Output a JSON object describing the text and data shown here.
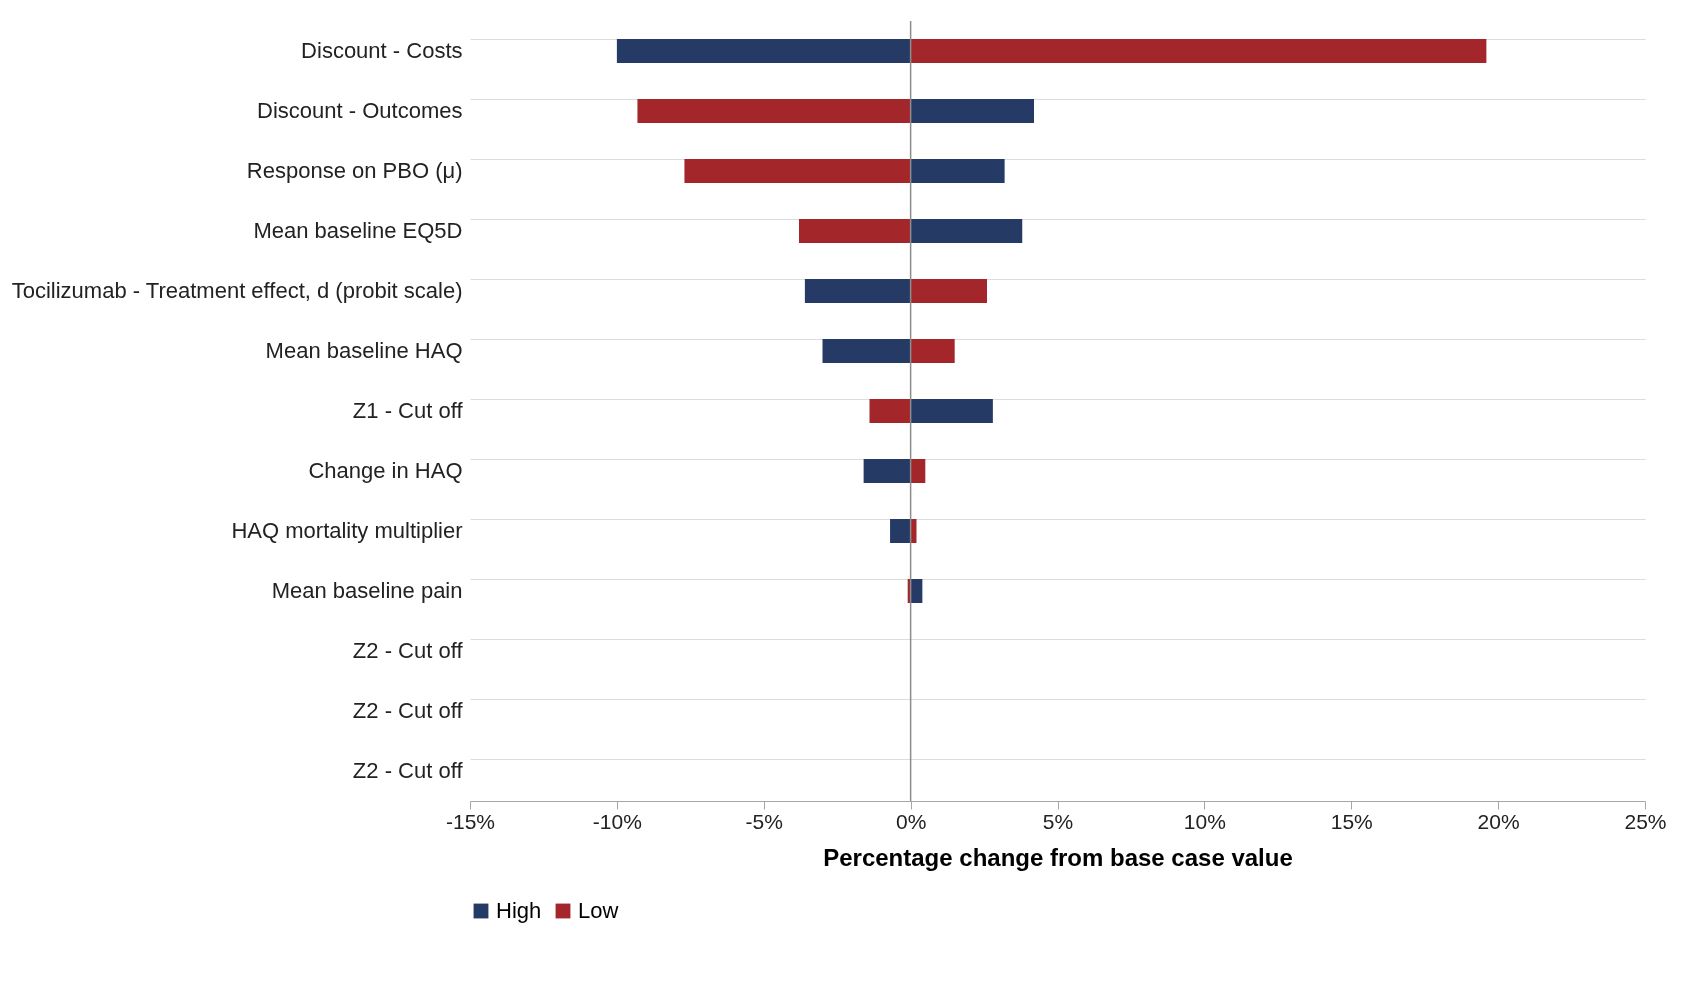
{
  "chart_data": {
    "type": "bar",
    "orientation": "horizontal",
    "stacked": true,
    "xlabel": "Percentage change from base case value",
    "categories": [
      "Discount - Costs",
      "Discount - Outcomes",
      "Response on PBO (μ)",
      "Mean baseline EQ5D",
      "Tocilizumab - Treatment effect, d (probit scale)",
      "Mean baseline HAQ",
      "Z1 - Cut off",
      "Change in HAQ",
      "HAQ mortality multiplier",
      "Mean baseline pain",
      "Z2 - Cut off",
      "Z2 - Cut off",
      "Z2 - Cut off"
    ],
    "series": [
      {
        "name": "High",
        "color": "#253b66",
        "values": [
          -10.0,
          4.2,
          3.2,
          3.8,
          -3.6,
          -3.0,
          2.8,
          -1.6,
          -0.7,
          0.4,
          0,
          0,
          0
        ]
      },
      {
        "name": "Low",
        "color": "#a3262a",
        "values": [
          19.6,
          -9.3,
          -7.7,
          -3.8,
          2.6,
          1.5,
          -1.4,
          0.5,
          0.2,
          -0.1,
          0,
          0,
          0
        ]
      }
    ],
    "xlim": [
      -15,
      25
    ],
    "xticks": [
      {
        "value": -15,
        "label": "-15%"
      },
      {
        "value": -10,
        "label": "-10%"
      },
      {
        "value": -5,
        "label": "-5%"
      },
      {
        "value": 0,
        "label": "0%"
      },
      {
        "value": 5,
        "label": "5%"
      },
      {
        "value": 10,
        "label": "10%"
      },
      {
        "value": 15,
        "label": "15%"
      },
      {
        "value": 20,
        "label": "20%"
      },
      {
        "value": 25,
        "label": "25%"
      }
    ],
    "ref_lines": [
      {
        "axis": "x",
        "value": 0,
        "color": "#8c8c8c"
      }
    ],
    "grid": "y",
    "legend": "bottom"
  }
}
